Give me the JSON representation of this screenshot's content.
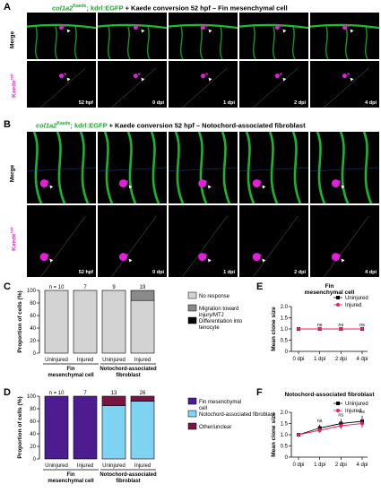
{
  "panel_A": {
    "letter": "A",
    "title_gene": "col1a2",
    "title_gene_sup": "Kaede",
    "title_reporter": "; kdrl:EGFP",
    "title_rest": " + Kaede conversion 52 hpf  –  Fin mesenchymal cell",
    "row_merge": "Merge",
    "row_kaede": "Kaede",
    "row_kaede_sup": "red",
    "timepoints": [
      "52 hpf",
      "0 dpi",
      "1 dpi",
      "2 dpi",
      "4 dpi"
    ]
  },
  "panel_B": {
    "letter": "B",
    "title_gene": "col1a2",
    "title_gene_sup": "Kaede",
    "title_reporter": "; kdrl:EGFP",
    "title_rest": " + Kaede conversion 52 hpf  –  Notochord-associated fibroblast",
    "row_merge": "Merge",
    "row_kaede": "Kaede",
    "row_kaede_sup": "red",
    "timepoints": [
      "52 hpf",
      "0 dpi",
      "1 dpi",
      "2 dpi",
      "4 dpi"
    ]
  },
  "chart_data": [
    {
      "panel": "C",
      "type": "bar",
      "stacked": true,
      "ylabel": "Proportion of cells (%)",
      "ylim": [
        0,
        100
      ],
      "yticks": [
        0,
        20,
        40,
        60,
        80,
        100
      ],
      "categories": [
        "Uninjured",
        "Injured",
        "Uninjured",
        "Injured"
      ],
      "groups": [
        "Fin mesenchymal cell",
        "Notochord-associated fibroblast"
      ],
      "n_prefix": "n = ",
      "n": [
        10,
        7,
        9,
        19
      ],
      "series": [
        {
          "name": "No response",
          "color": "#d3d3d3",
          "values": [
            100,
            100,
            100,
            84
          ]
        },
        {
          "name": "Migration toward injury/MTJ",
          "color": "#8a8a8a",
          "values": [
            0,
            0,
            0,
            16
          ]
        },
        {
          "name": "Differentiation into tenocyte",
          "color": "#000000",
          "values": [
            0,
            0,
            0,
            0
          ]
        }
      ]
    },
    {
      "panel": "D",
      "type": "bar",
      "stacked": true,
      "ylabel": "Proportion of cells (%)",
      "ylim": [
        0,
        100
      ],
      "yticks": [
        0,
        20,
        40,
        60,
        80,
        100
      ],
      "categories": [
        "Uninjured",
        "Injured",
        "Uninjured",
        "Injured"
      ],
      "groups": [
        "Fin mesenchymal cell",
        "Notochord-associated fibroblast"
      ],
      "n_prefix": "n = ",
      "n": [
        10,
        7,
        13,
        26
      ],
      "series": [
        {
          "name": "Fin mesenchymal cell",
          "color": "#4b1d8f",
          "values": [
            100,
            100,
            0,
            0
          ]
        },
        {
          "name": "Notochord-associated fibroblast",
          "color": "#7fd3f2",
          "values": [
            0,
            0,
            85,
            92
          ]
        },
        {
          "name": "Other/unclear",
          "color": "#7a1440",
          "values": [
            0,
            0,
            15,
            8
          ]
        }
      ]
    },
    {
      "panel": "E",
      "type": "line",
      "title": "Fin mesenchymal cell",
      "ylabel": "Mean clone size",
      "categories": [
        "0 dpi",
        "1 dpi",
        "2 dpi",
        "4 dpi"
      ],
      "ylim": [
        0,
        2.0
      ],
      "yticks": [
        0,
        0.5,
        1.0,
        1.5,
        2.0
      ],
      "ytick_labels": [
        "0",
        "0.5",
        "1.0",
        "1.5",
        "2.0"
      ],
      "series": [
        {
          "name": "Uninjured",
          "color": "#000000",
          "marker": "square",
          "values": [
            1.0,
            1.0,
            1.0,
            1.0
          ],
          "err": [
            0,
            0,
            0,
            0
          ]
        },
        {
          "name": "Injured",
          "color": "#e0245e",
          "marker": "circle",
          "values": [
            1.0,
            1.0,
            1.0,
            1.0
          ],
          "err": [
            0,
            0,
            0,
            0
          ]
        }
      ],
      "annotations": [
        "",
        "ns",
        "ns",
        "ns"
      ]
    },
    {
      "panel": "F",
      "type": "line",
      "title": "Notochord-associated fibroblast",
      "ylabel": "Mean clone size",
      "categories": [
        "0 dpi",
        "1 dpi",
        "2 dpi",
        "4 dpi"
      ],
      "ylim": [
        0,
        2.0
      ],
      "yticks": [
        0,
        0.5,
        1.0,
        1.5,
        2.0
      ],
      "ytick_labels": [
        "0",
        "0.5",
        "1.0",
        "1.5",
        "2.0"
      ],
      "series": [
        {
          "name": "Uninjured",
          "color": "#000000",
          "marker": "square",
          "values": [
            1.0,
            1.3,
            1.5,
            1.6
          ],
          "err": [
            0,
            0.15,
            0.2,
            0.25
          ]
        },
        {
          "name": "Injured",
          "color": "#e0245e",
          "marker": "circle",
          "values": [
            1.0,
            1.2,
            1.4,
            1.5
          ],
          "err": [
            0,
            0.12,
            0.15,
            0.2
          ]
        }
      ],
      "annotations": [
        "",
        "ns",
        "ns",
        "ns"
      ]
    }
  ],
  "colors": {
    "micro_bg": "#000000",
    "egfp": "#1fd43a",
    "kaede": "#e21fd9",
    "title_green": "#1fa62e",
    "title_magenta": "#d42fd0"
  }
}
